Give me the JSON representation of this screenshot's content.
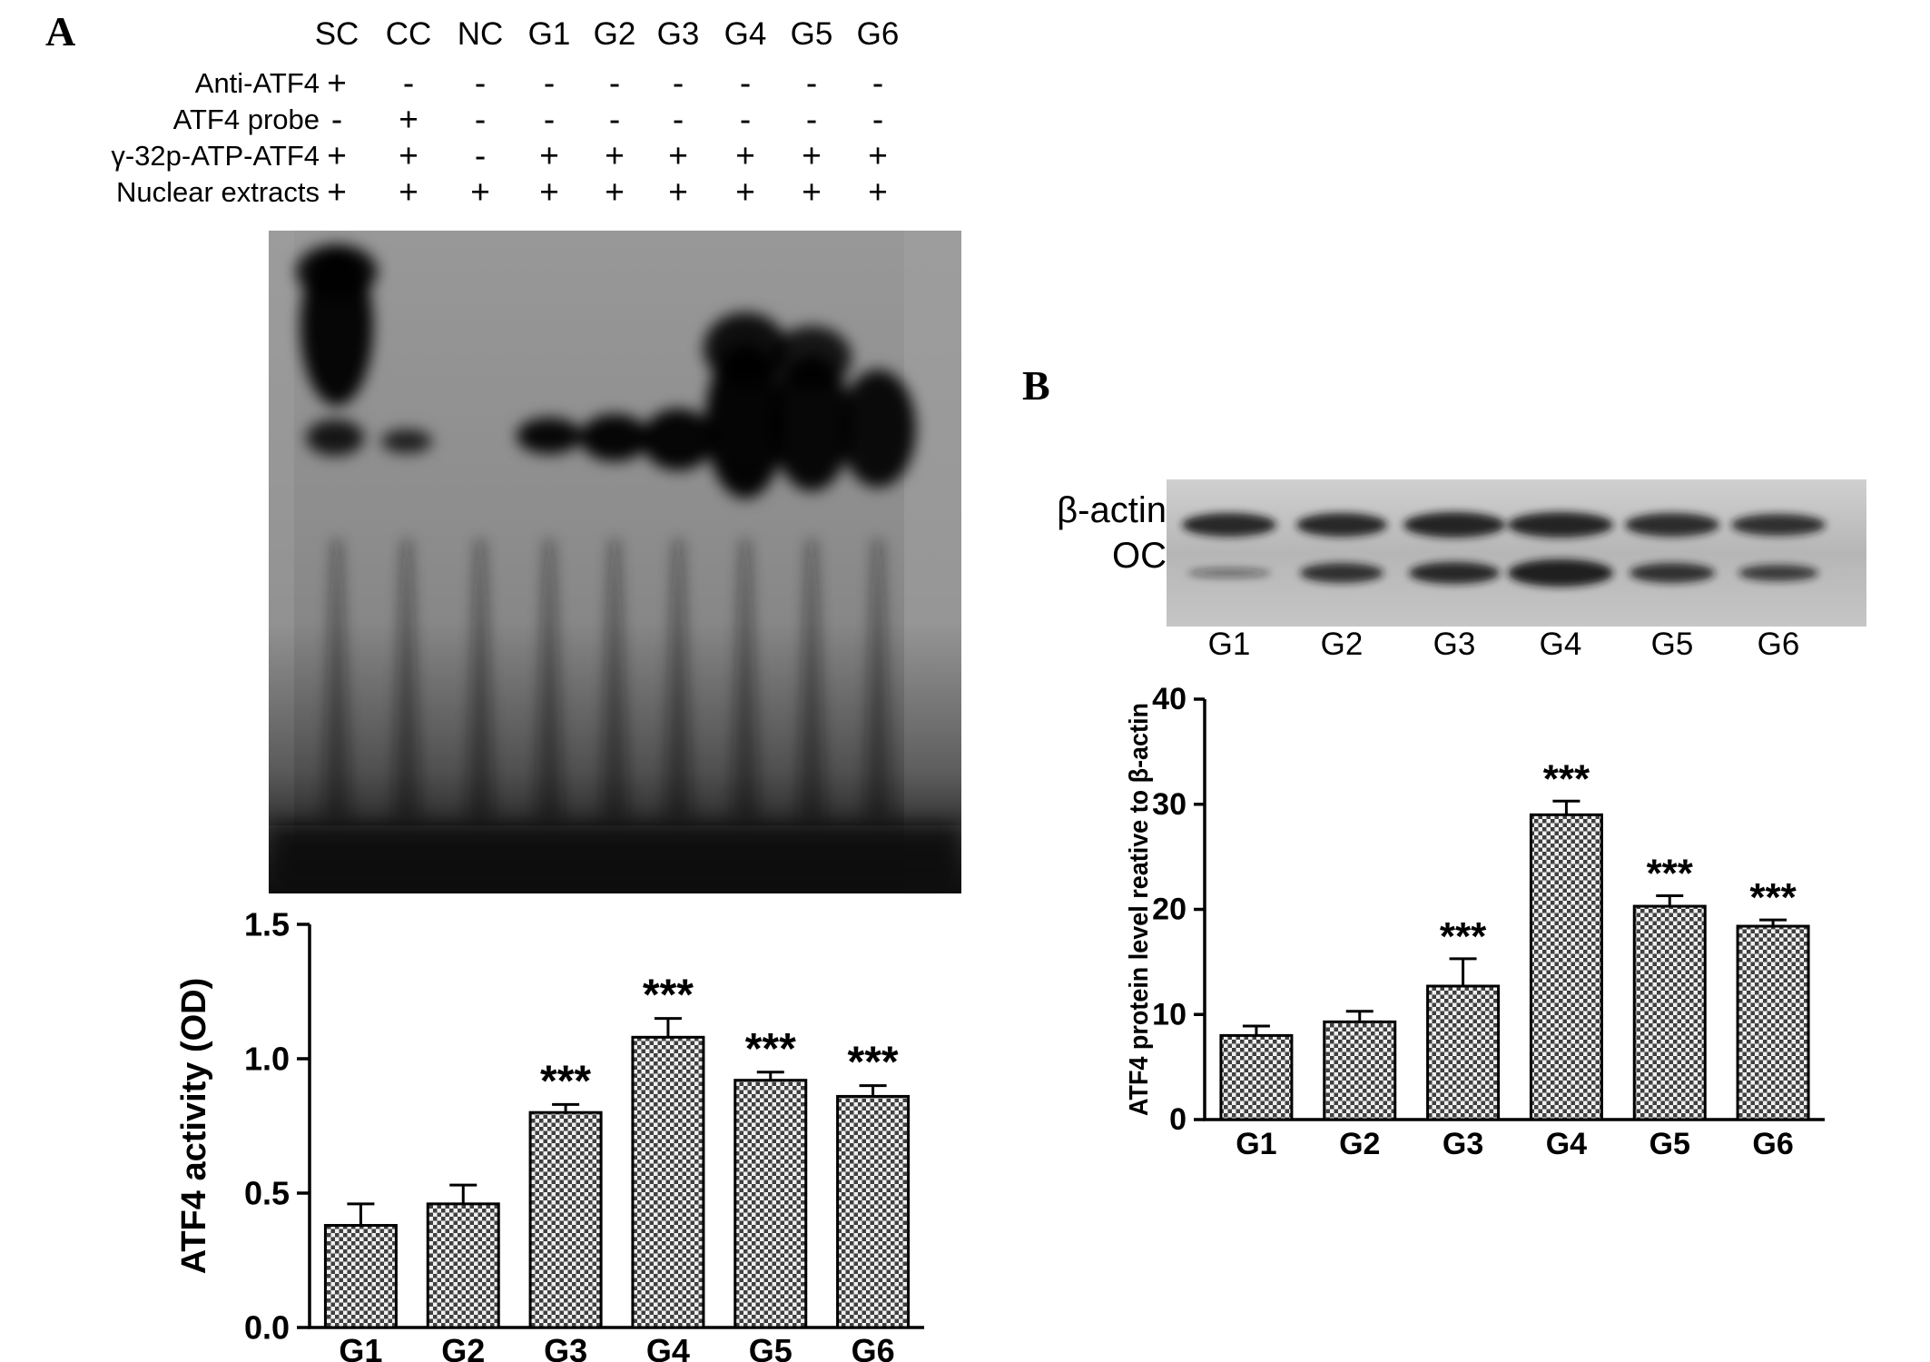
{
  "panelA": {
    "label": "A",
    "lane_headers": [
      "SC",
      "CC",
      "NC",
      "G1",
      "G2",
      "G3",
      "G4",
      "G5",
      "G6"
    ],
    "conditions": [
      {
        "label": "Anti-ATF4",
        "signs": [
          "+",
          "-",
          "-",
          "-",
          "-",
          "-",
          "-",
          "-",
          "-"
        ]
      },
      {
        "label": "ATF4 probe",
        "signs": [
          "-",
          "+",
          "-",
          "-",
          "-",
          "-",
          "-",
          "-",
          "-"
        ]
      },
      {
        "label": "γ-32p-ATP-ATF4",
        "signs": [
          "+",
          "+",
          "-",
          "+",
          "+",
          "+",
          "+",
          "+",
          "+"
        ]
      },
      {
        "label": "Nuclear extracts",
        "signs": [
          "+",
          "+",
          "+",
          "+",
          "+",
          "+",
          "+",
          "+",
          "+"
        ]
      }
    ]
  },
  "panelB": {
    "label": "B",
    "blot_row_labels": [
      "β-actin",
      "OC"
    ],
    "blot_lane_labels": [
      "G1",
      "G2",
      "G3",
      "G4",
      "G5",
      "G6"
    ]
  },
  "chart_data": [
    {
      "id": "atf4_activity",
      "type": "bar",
      "title": "",
      "categories": [
        "G1",
        "G2",
        "G3",
        "G4",
        "G5",
        "G6"
      ],
      "values": [
        0.38,
        0.46,
        0.8,
        1.08,
        0.92,
        0.86
      ],
      "errors": [
        0.08,
        0.07,
        0.03,
        0.07,
        0.03,
        0.04
      ],
      "annotations": [
        "",
        "",
        "***",
        "***",
        "***",
        "***"
      ],
      "xlabel": "",
      "ylabel": "ATF4 activity (OD)",
      "ylim": [
        0,
        1.5
      ],
      "yticks": [
        0,
        0.5,
        1.0,
        1.5
      ],
      "ytick_labels": [
        "0.0",
        "0.5",
        "1.0",
        "1.5"
      ],
      "grid": false,
      "legend": false
    },
    {
      "id": "atf4_protein_level",
      "type": "bar",
      "title": "",
      "categories": [
        "G1",
        "G2",
        "G3",
        "G4",
        "G5",
        "G6"
      ],
      "values": [
        8.0,
        9.3,
        12.7,
        29.0,
        20.3,
        18.4
      ],
      "errors": [
        0.9,
        1.0,
        2.6,
        1.3,
        1.0,
        0.6
      ],
      "annotations": [
        "",
        "",
        "***",
        "***",
        "***",
        "***"
      ],
      "xlabel": "",
      "ylabel": "ATF4  protein level reative to β-actin",
      "ylim": [
        0,
        40
      ],
      "yticks": [
        0,
        10,
        20,
        30,
        40
      ],
      "ytick_labels": [
        "0",
        "10",
        "20",
        "30",
        "40"
      ],
      "grid": false,
      "legend": false
    }
  ]
}
